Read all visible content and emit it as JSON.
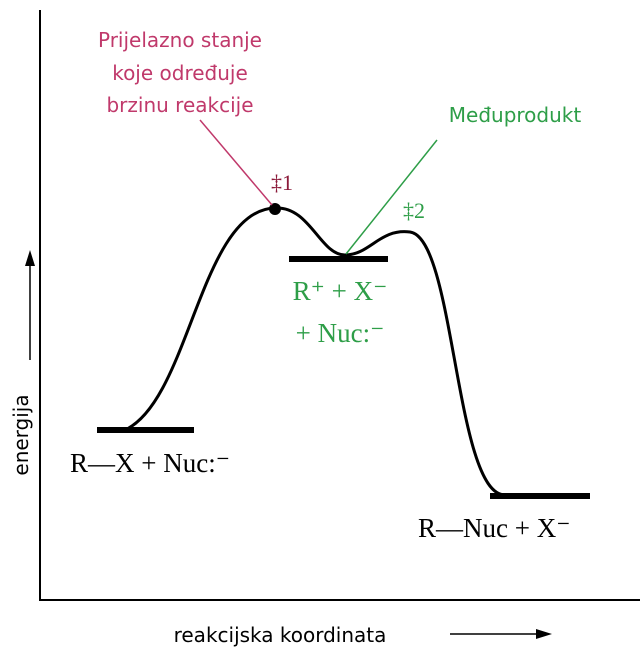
{
  "annotations": {
    "transition_state": [
      "Prijelazno stanje",
      "koje određuje",
      "brzinu reakcije"
    ],
    "ts1": "‡1",
    "intermediate": "Međuprodukt",
    "ts2": "‡2"
  },
  "species": {
    "reactants": "R—X + Nuc:⁻",
    "intermediate": [
      "R⁺ + X⁻",
      "+ Nuc:⁻"
    ],
    "products": "R—Nuc + X⁻"
  },
  "axes": {
    "y_label": "energija",
    "x_label": "reakcijska koordinata"
  }
}
